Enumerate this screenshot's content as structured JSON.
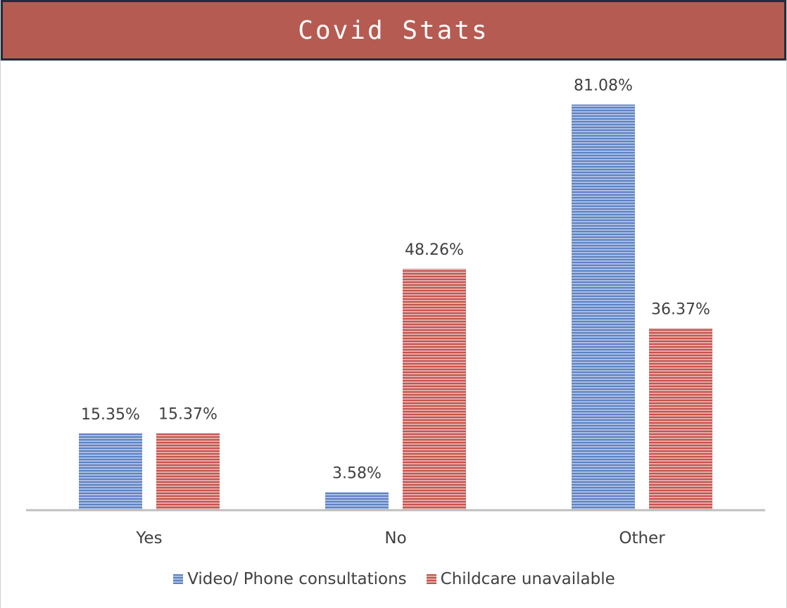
{
  "chart_data": {
    "type": "bar",
    "title": "Covid Stats",
    "categories": [
      "Yes",
      "No",
      "Other"
    ],
    "series": [
      {
        "name": "Video/ Phone consultations",
        "color": "#6e8fc8",
        "values": [
          15.35,
          3.58,
          81.08
        ],
        "labels": [
          "15.35%",
          "3.58%",
          "81.08%"
        ]
      },
      {
        "name": "Childcare unavailable",
        "color": "#c9615b",
        "values": [
          15.37,
          48.26,
          36.37
        ],
        "labels": [
          "15.37%",
          "48.26%",
          "36.37%"
        ]
      }
    ],
    "ylim": [
      0,
      86.5
    ],
    "grid": false,
    "legend_position": "bottom"
  }
}
